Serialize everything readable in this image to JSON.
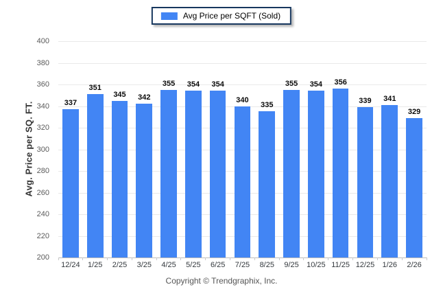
{
  "chart_data": {
    "type": "bar",
    "title": "",
    "legend": "Avg Price per SQFT (Sold)",
    "legend_position": "top-center",
    "categories": [
      "12/24",
      "1/25",
      "2/25",
      "3/25",
      "4/25",
      "5/25",
      "6/25",
      "7/25",
      "8/25",
      "9/25",
      "10/25",
      "11/25",
      "12/25",
      "1/26",
      "2/26"
    ],
    "values": [
      337,
      351,
      345,
      342,
      355,
      354,
      354,
      340,
      335,
      355,
      354,
      356,
      339,
      341,
      329
    ],
    "xlabel": "",
    "ylabel": "Avg. Price per SQ. FT.",
    "ylim": [
      200,
      400
    ],
    "ytick_step": 20,
    "grid": "horizontal",
    "colors": {
      "bar": "#4285F4",
      "gridline": "#e9e9e9",
      "axis_line": "#bdbdbd",
      "legend_border": "#17375E"
    }
  },
  "footer": {
    "copyright": "Copyright © Trendgraphix, Inc."
  }
}
